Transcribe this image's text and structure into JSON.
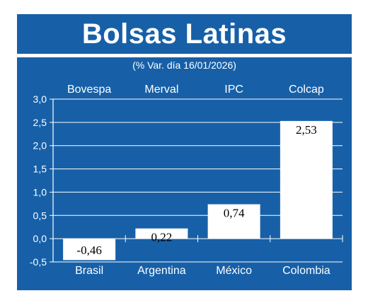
{
  "header": {
    "title": "Bolsas Latinas",
    "subtitle": "(% Var. día 16/01/2026)"
  },
  "colors": {
    "background": "#1760a8",
    "bar": "#ffffff",
    "text": "#ffffff",
    "label_text": "#000000"
  },
  "chart_data": {
    "type": "bar",
    "title": "Bolsas Latinas",
    "subtitle": "(% Var. día 16/01/2026)",
    "index_names": [
      "Bovespa",
      "Merval",
      "IPC",
      "Colcap"
    ],
    "categories": [
      "Brasil",
      "Argentina",
      "México",
      "Colombia"
    ],
    "values": [
      -0.46,
      0.22,
      0.74,
      2.53
    ],
    "value_labels": [
      "-0,46",
      "0,22",
      "0,74",
      "2,53"
    ],
    "ylim": [
      -0.5,
      3.0
    ],
    "yticks": [
      -0.5,
      0.0,
      0.5,
      1.0,
      1.5,
      2.0,
      2.5,
      3.0
    ],
    "ytick_labels": [
      "-0,5",
      "0,0",
      "0,5",
      "1,0",
      "1,5",
      "2,0",
      "2,5",
      "3,0"
    ],
    "grid": true,
    "xlabel": "",
    "ylabel": ""
  }
}
